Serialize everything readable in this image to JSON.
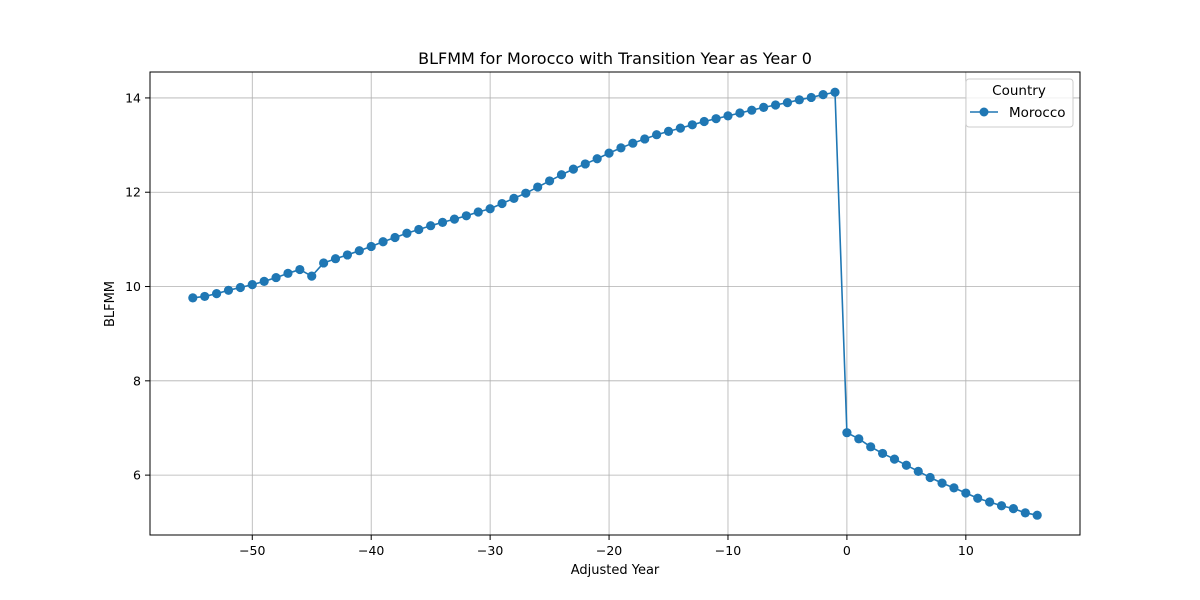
{
  "chart_data": {
    "type": "line",
    "title": "BLFMM for Morocco with Transition Year as Year 0",
    "xlabel": "Adjusted Year",
    "ylabel": "BLFMM",
    "xlim": [
      -58.6,
      19.6
    ],
    "ylim": [
      4.73,
      14.55
    ],
    "xticks": [
      -50,
      -40,
      -30,
      -20,
      -10,
      0,
      10
    ],
    "xtick_labels": [
      "−50",
      "−40",
      "−30",
      "−20",
      "−10",
      "0",
      "10"
    ],
    "yticks": [
      6,
      8,
      10,
      12,
      14
    ],
    "ytick_labels": [
      "6",
      "8",
      "10",
      "12",
      "14"
    ],
    "grid": true,
    "legend": {
      "title": "Country",
      "placement": "top-right"
    },
    "series": [
      {
        "name": "Morocco",
        "color": "#1f77b4",
        "marker": "circle",
        "x": [
          -55,
          -54,
          -53,
          -52,
          -51,
          -50,
          -49,
          -48,
          -47,
          -46,
          -45,
          -44,
          -43,
          -42,
          -41,
          -40,
          -39,
          -38,
          -37,
          -36,
          -35,
          -34,
          -33,
          -32,
          -31,
          -30,
          -29,
          -28,
          -27,
          -26,
          -25,
          -24,
          -23,
          -22,
          -21,
          -20,
          -19,
          -18,
          -17,
          -16,
          -15,
          -14,
          -13,
          -12,
          -11,
          -10,
          -9,
          -8,
          -7,
          -6,
          -5,
          -4,
          -3,
          -2,
          -1,
          0,
          1,
          2,
          3,
          4,
          5,
          6,
          7,
          8,
          9,
          10,
          11,
          12,
          13,
          14,
          15,
          16
        ],
        "y": [
          9.76,
          9.79,
          9.85,
          9.92,
          9.98,
          10.04,
          10.11,
          10.19,
          10.28,
          10.36,
          10.22,
          10.5,
          10.59,
          10.67,
          10.76,
          10.85,
          10.95,
          11.04,
          11.13,
          11.21,
          11.29,
          11.36,
          11.43,
          11.5,
          11.58,
          11.65,
          11.76,
          11.87,
          11.98,
          12.11,
          12.24,
          12.37,
          12.49,
          12.6,
          12.71,
          12.83,
          12.94,
          13.04,
          13.13,
          13.22,
          13.29,
          13.36,
          13.43,
          13.5,
          13.56,
          13.62,
          13.68,
          13.74,
          13.8,
          13.85,
          13.9,
          13.96,
          14.01,
          14.07,
          14.12,
          6.9,
          6.77,
          6.6,
          6.46,
          6.34,
          6.21,
          6.08,
          5.95,
          5.83,
          5.73,
          5.62,
          5.51,
          5.43,
          5.35,
          5.29,
          5.2,
          5.15
        ]
      }
    ]
  }
}
